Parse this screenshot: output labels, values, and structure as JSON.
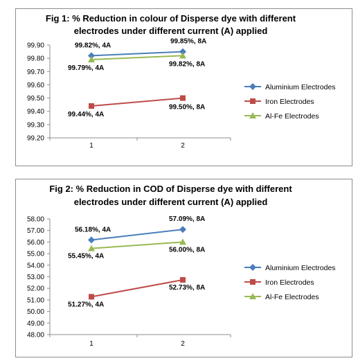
{
  "chart_data": [
    {
      "type": "line",
      "title_lines": [
        "Fig 1: % Reduction in colour of Disperse dye with different",
        "electrodes under different current (A) applied"
      ],
      "categories": [
        "1",
        "2"
      ],
      "ylim": [
        99.2,
        99.9
      ],
      "ystep": 0.1,
      "ytick_decimals": 2,
      "grid": false,
      "legend": "right",
      "series": [
        {
          "name": "Aluminium Electrodes",
          "marker": "diamond",
          "color": "#4a7ebb",
          "values": [
            99.82,
            99.85
          ],
          "labels": [
            "99.82%, 4A",
            "99.85%, 8A"
          ]
        },
        {
          "name": "Iron Electrodes",
          "marker": "square",
          "color": "#be4b48",
          "values": [
            99.44,
            99.5
          ],
          "labels": [
            "99.44%, 4A",
            "99.50%, 8A"
          ]
        },
        {
          "name": "Al-Fe Electrodes",
          "marker": "triangle",
          "color": "#98b954",
          "values": [
            99.79,
            99.82
          ],
          "labels": [
            "99.79%, 4A",
            "99.82%, 8A"
          ]
        }
      ]
    },
    {
      "type": "line",
      "title_lines": [
        "Fig 2: % Reduction in COD of Disperse dye with different",
        "electrodes under different current (A) applied"
      ],
      "categories": [
        "1",
        "2"
      ],
      "ylim": [
        48.0,
        58.0
      ],
      "ystep": 1,
      "ytick_decimals": 2,
      "grid": false,
      "legend": "right",
      "series": [
        {
          "name": "Aluminium Electrodes",
          "marker": "diamond",
          "color": "#4a7ebb",
          "values": [
            56.18,
            57.09
          ],
          "labels": [
            "56.18%, 4A",
            "57.09%, 8A"
          ]
        },
        {
          "name": "Iron Electrodes",
          "marker": "square",
          "color": "#be4b48",
          "values": [
            51.27,
            52.73
          ],
          "labels": [
            "51.27%, 4A",
            "52.73%, 8A"
          ]
        },
        {
          "name": "Al-Fe Electrodes",
          "marker": "triangle",
          "color": "#98b954",
          "values": [
            55.45,
            56.0
          ],
          "labels": [
            "55.45%, 4A",
            "56.00%, 8A"
          ]
        }
      ]
    }
  ]
}
